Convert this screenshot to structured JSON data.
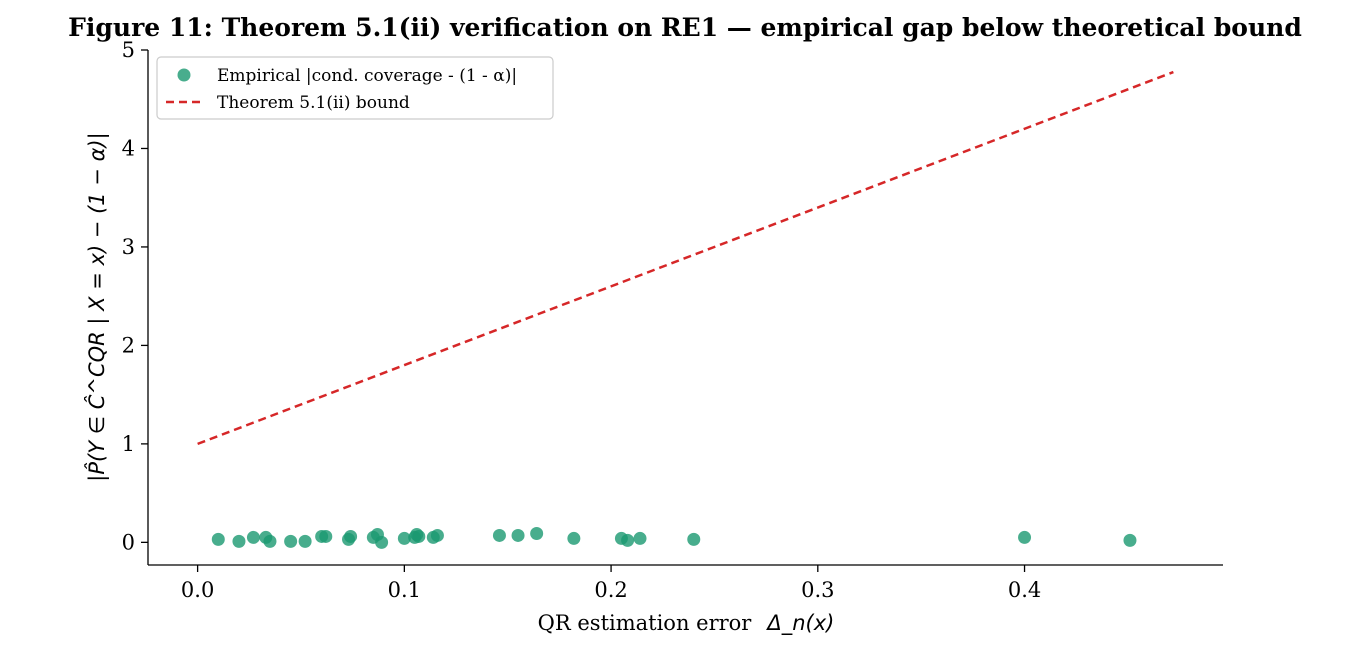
{
  "figure": {
    "title": "Figure 11: Theorem 5.1(ii) verification on RE1 — empirical gap below theoretical bound"
  },
  "chart_data": {
    "type": "scatter",
    "title": "Figure 11: Theorem 5.1(ii) verification on RE1 — empirical gap below theoretical bound",
    "xlabel_text": "QR estimation error",
    "xlabel_math": "Δ_n(x)",
    "ylabel_math": "|P̂(Y ∈ Ĉ^CQR | X = x) − (1 − α)|",
    "xlim": [
      -0.024,
      0.496
    ],
    "ylim": [
      -0.23,
      5.0
    ],
    "x_ticks": [
      0.0,
      0.1,
      0.2,
      0.3,
      0.4
    ],
    "x_tick_labels": [
      "0.0",
      "0.1",
      "0.2",
      "0.3",
      "0.4"
    ],
    "y_ticks": [
      0,
      1,
      2,
      3,
      4,
      5
    ],
    "y_tick_labels": [
      "0",
      "1",
      "2",
      "3",
      "4",
      "5"
    ],
    "grid": false,
    "legend_position": "upper-left",
    "series": [
      {
        "name": "Empirical |cond. coverage - (1 - α)|",
        "type": "scatter",
        "color": "#1a9970",
        "points": [
          [
            0.01,
            0.03
          ],
          [
            0.02,
            0.01
          ],
          [
            0.027,
            0.05
          ],
          [
            0.033,
            0.05
          ],
          [
            0.035,
            0.01
          ],
          [
            0.045,
            0.01
          ],
          [
            0.052,
            0.01
          ],
          [
            0.06,
            0.06
          ],
          [
            0.062,
            0.06
          ],
          [
            0.073,
            0.03
          ],
          [
            0.074,
            0.06
          ],
          [
            0.085,
            0.05
          ],
          [
            0.087,
            0.08
          ],
          [
            0.089,
            0.0
          ],
          [
            0.1,
            0.04
          ],
          [
            0.105,
            0.05
          ],
          [
            0.106,
            0.08
          ],
          [
            0.107,
            0.06
          ],
          [
            0.114,
            0.05
          ],
          [
            0.116,
            0.07
          ],
          [
            0.146,
            0.07
          ],
          [
            0.155,
            0.07
          ],
          [
            0.164,
            0.09
          ],
          [
            0.182,
            0.04
          ],
          [
            0.205,
            0.04
          ],
          [
            0.208,
            0.02
          ],
          [
            0.214,
            0.04
          ],
          [
            0.24,
            0.03
          ],
          [
            0.4,
            0.05
          ],
          [
            0.451,
            0.02
          ]
        ]
      },
      {
        "name": "Theorem 5.1(ii) bound",
        "type": "line",
        "style": "dashed",
        "color": "#d62728",
        "x": [
          0.0,
          0.472
        ],
        "y": [
          1.0,
          4.776
        ]
      }
    ]
  }
}
